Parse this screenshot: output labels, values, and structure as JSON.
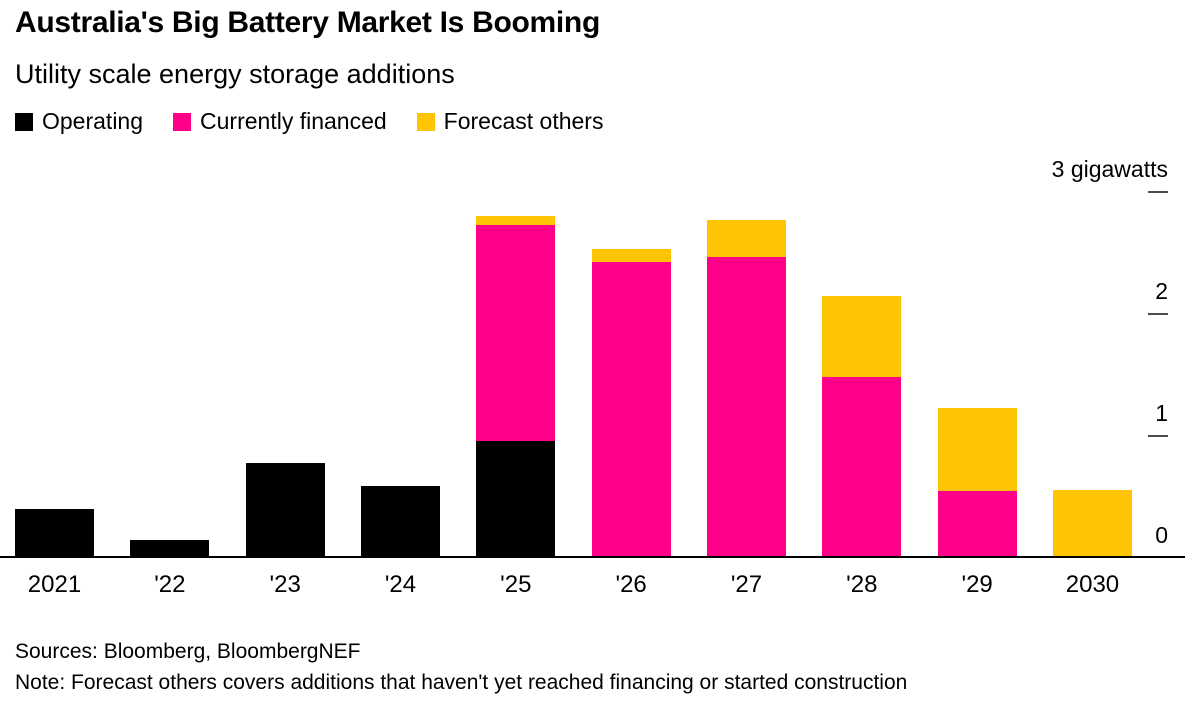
{
  "header": {
    "title": "Australia's Big Battery Market Is Booming",
    "subtitle": "Utility scale energy storage additions"
  },
  "legend": {
    "items": [
      {
        "label": "Operating",
        "color": "#000000"
      },
      {
        "label": "Currently financed",
        "color": "#ff0088"
      },
      {
        "label": "Forecast others",
        "color": "#ffc403"
      }
    ]
  },
  "chart_data": {
    "type": "bar",
    "stacked": true,
    "title": "Australia's Big Battery Market Is Booming",
    "subtitle": "Utility scale energy storage additions",
    "categories": [
      "2021",
      "'22",
      "'23",
      "'24",
      "'25",
      "'26",
      "'27",
      "'28",
      "'29",
      "2030"
    ],
    "series": [
      {
        "name": "Operating",
        "color": "#000000",
        "values": [
          0.4,
          0.15,
          0.78,
          0.59,
          0.96,
          0,
          0,
          0,
          0,
          0
        ]
      },
      {
        "name": "Currently financed",
        "color": "#ff0088",
        "values": [
          0,
          0,
          0,
          0,
          1.77,
          2.43,
          2.47,
          1.48,
          0.55,
          0
        ]
      },
      {
        "name": "Forecast others",
        "color": "#ffc403",
        "values": [
          0,
          0,
          0,
          0,
          0.07,
          0.1,
          0.3,
          0.67,
          0.68,
          0.56
        ]
      }
    ],
    "unit": "gigawatts",
    "yticks": [
      {
        "value": 3,
        "label": "3 gigawatts"
      },
      {
        "value": 2,
        "label": "2"
      },
      {
        "value": 1,
        "label": "1"
      },
      {
        "value": 0,
        "label": "0"
      }
    ],
    "ylim": [
      0,
      3.05
    ],
    "grid": false,
    "legend_position": "top",
    "axis_side": "right"
  },
  "footer": {
    "sources": "Sources: Bloomberg, BloombergNEF",
    "note": "Note: Forecast others covers additions that haven't yet reached financing or started construction"
  }
}
